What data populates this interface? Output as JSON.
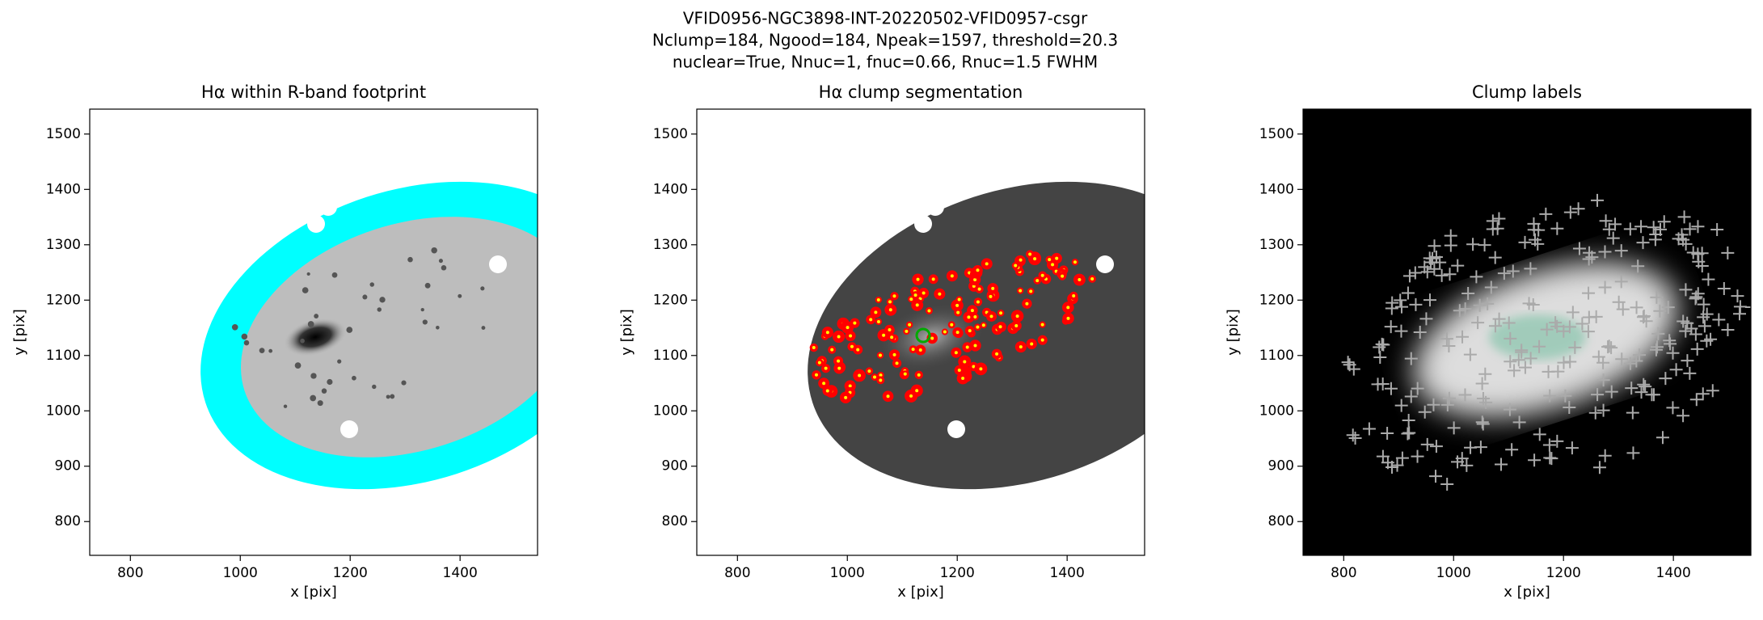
{
  "figure_title": [
    "VFID0956-NGC3898-INT-20220502-VFID0957-csgr",
    "Nclump=184, Ngood=184, Npeak=1597, threshold=20.3",
    "nuclear=True, Nnuc=1, fnuc=0.66, Rnuc=1.5 FWHM"
  ],
  "chart_data": [
    {
      "type": "image",
      "title": "Hα within R-band footprint",
      "xlabel": "x [pix]",
      "ylabel": "y [pix]",
      "xlim": [
        726,
        1541
      ],
      "ylim": [
        739,
        1545
      ],
      "xticks": [
        800,
        1000,
        1200,
        1400
      ],
      "yticks": [
        800,
        900,
        1000,
        1100,
        1200,
        1300,
        1400,
        1500
      ]
    },
    {
      "type": "image",
      "title": "Hα clump segmentation",
      "xlabel": "x [pix]",
      "ylabel": "y [pix]",
      "xlim": [
        726,
        1541
      ],
      "ylim": [
        739,
        1545
      ],
      "xticks": [
        800,
        1000,
        1200,
        1400
      ],
      "yticks": [
        800,
        900,
        1000,
        1100,
        1200,
        1300,
        1400,
        1500
      ]
    },
    {
      "type": "image",
      "title": "Clump labels",
      "xlabel": "x [pix]",
      "ylabel": "y [pix]",
      "xlim": [
        726,
        1541
      ],
      "ylim": [
        739,
        1545
      ],
      "xticks": [
        800,
        1000,
        1200,
        1400
      ],
      "yticks": [
        800,
        900,
        1000,
        1100,
        1200,
        1300,
        1400,
        1500
      ]
    }
  ]
}
